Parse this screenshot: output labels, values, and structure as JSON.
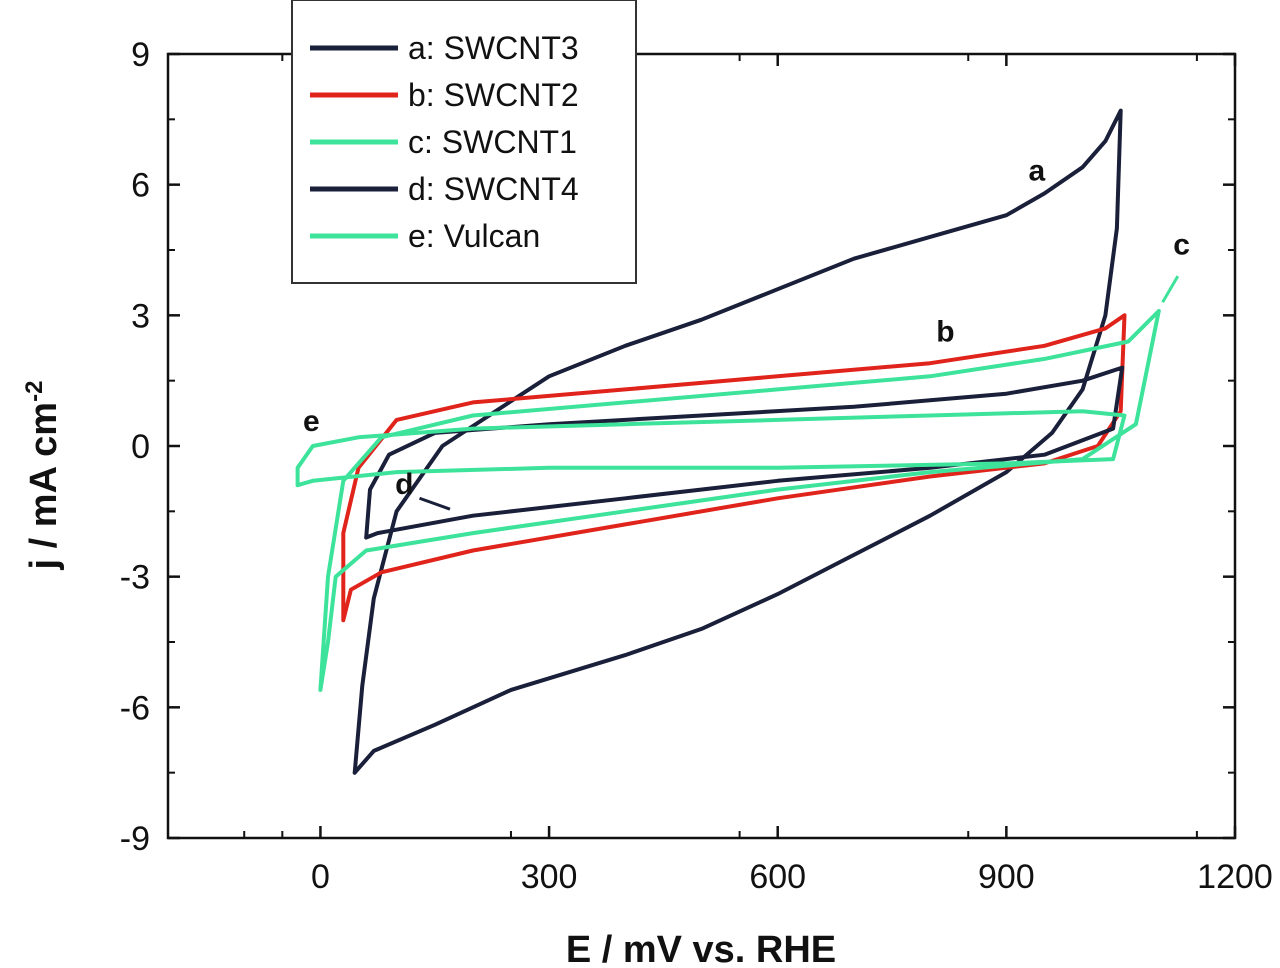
{
  "chart_data": {
    "type": "line",
    "xlabel": "E / mV vs. RHE",
    "ylabel": "j / mA cm",
    "ylabel_sup": "-2",
    "xlim": [
      -200,
      1200
    ],
    "ylim": [
      -9,
      9
    ],
    "xticks": [
      0,
      300,
      600,
      900,
      1200
    ],
    "yticks": [
      -9,
      -6,
      -3,
      0,
      3,
      6,
      9
    ],
    "legend_position": "top-left",
    "series": [
      {
        "name": "a: SWCNT3",
        "color": "#1a1f3a",
        "points": [
          [
            45,
            -7.5
          ],
          [
            70,
            -7.0
          ],
          [
            150,
            -6.4
          ],
          [
            250,
            -5.6
          ],
          [
            400,
            -4.8
          ],
          [
            500,
            -4.2
          ],
          [
            600,
            -3.4
          ],
          [
            700,
            -2.5
          ],
          [
            800,
            -1.6
          ],
          [
            900,
            -0.6
          ],
          [
            960,
            0.3
          ],
          [
            1000,
            1.3
          ],
          [
            1030,
            3.0
          ],
          [
            1045,
            5.0
          ],
          [
            1050,
            7.7
          ],
          [
            1030,
            7.0
          ],
          [
            1000,
            6.4
          ],
          [
            950,
            5.8
          ],
          [
            900,
            5.3
          ],
          [
            800,
            4.8
          ],
          [
            700,
            4.3
          ],
          [
            600,
            3.6
          ],
          [
            500,
            2.9
          ],
          [
            400,
            2.3
          ],
          [
            300,
            1.6
          ],
          [
            230,
            0.8
          ],
          [
            160,
            0.0
          ],
          [
            100,
            -1.5
          ],
          [
            70,
            -3.5
          ],
          [
            55,
            -5.5
          ],
          [
            45,
            -7.5
          ]
        ]
      },
      {
        "name": "b: SWCNT2",
        "color": "#e0241c",
        "points": [
          [
            30,
            -4.0
          ],
          [
            40,
            -3.3
          ],
          [
            80,
            -2.9
          ],
          [
            200,
            -2.4
          ],
          [
            400,
            -1.8
          ],
          [
            600,
            -1.2
          ],
          [
            800,
            -0.7
          ],
          [
            950,
            -0.4
          ],
          [
            1020,
            0.0
          ],
          [
            1050,
            0.8
          ],
          [
            1055,
            3.0
          ],
          [
            1030,
            2.7
          ],
          [
            950,
            2.3
          ],
          [
            800,
            1.9
          ],
          [
            600,
            1.6
          ],
          [
            400,
            1.3
          ],
          [
            200,
            1.0
          ],
          [
            100,
            0.6
          ],
          [
            50,
            -0.5
          ],
          [
            30,
            -2.0
          ],
          [
            30,
            -4.0
          ]
        ]
      },
      {
        "name": "c: SWCNT1",
        "color": "#3de39a",
        "points": [
          [
            0,
            -5.6
          ],
          [
            10,
            -4.5
          ],
          [
            20,
            -3.0
          ],
          [
            60,
            -2.4
          ],
          [
            200,
            -2.0
          ],
          [
            400,
            -1.5
          ],
          [
            600,
            -1.0
          ],
          [
            800,
            -0.6
          ],
          [
            1000,
            -0.3
          ],
          [
            1070,
            0.5
          ],
          [
            1100,
            3.1
          ],
          [
            1060,
            2.4
          ],
          [
            950,
            2.0
          ],
          [
            800,
            1.6
          ],
          [
            600,
            1.3
          ],
          [
            400,
            1.0
          ],
          [
            200,
            0.7
          ],
          [
            80,
            0.2
          ],
          [
            30,
            -0.8
          ],
          [
            10,
            -3.0
          ],
          [
            0,
            -5.6
          ]
        ]
      },
      {
        "name": "d: SWCNT4",
        "color": "#1a1f3a",
        "points": [
          [
            60,
            -2.1
          ],
          [
            75,
            -2.0
          ],
          [
            200,
            -1.6
          ],
          [
            400,
            -1.2
          ],
          [
            600,
            -0.8
          ],
          [
            800,
            -0.5
          ],
          [
            950,
            -0.2
          ],
          [
            1040,
            0.4
          ],
          [
            1052,
            1.8
          ],
          [
            1000,
            1.5
          ],
          [
            900,
            1.2
          ],
          [
            700,
            0.9
          ],
          [
            500,
            0.7
          ],
          [
            300,
            0.5
          ],
          [
            150,
            0.3
          ],
          [
            90,
            -0.2
          ],
          [
            65,
            -1.0
          ],
          [
            60,
            -2.1
          ]
        ]
      },
      {
        "name": "e: Vulcan",
        "color": "#3de39a",
        "points": [
          [
            -30,
            -0.9
          ],
          [
            -10,
            -0.8
          ],
          [
            100,
            -0.6
          ],
          [
            300,
            -0.5
          ],
          [
            600,
            -0.5
          ],
          [
            900,
            -0.4
          ],
          [
            1040,
            -0.3
          ],
          [
            1055,
            0.7
          ],
          [
            1000,
            0.8
          ],
          [
            800,
            0.7
          ],
          [
            600,
            0.6
          ],
          [
            400,
            0.5
          ],
          [
            200,
            0.4
          ],
          [
            50,
            0.2
          ],
          [
            -10,
            0.0
          ],
          [
            -30,
            -0.5
          ],
          [
            -30,
            -0.9
          ]
        ]
      }
    ],
    "annotations": [
      {
        "text": "a",
        "x": 940,
        "y": 6.1
      },
      {
        "text": "b",
        "x": 820,
        "y": 2.4
      },
      {
        "text": "c",
        "x": 1130,
        "y": 4.4
      },
      {
        "text": "d",
        "x": 110,
        "y": -1.1
      },
      {
        "text": "e",
        "x": -12,
        "y": 0.35
      }
    ]
  }
}
